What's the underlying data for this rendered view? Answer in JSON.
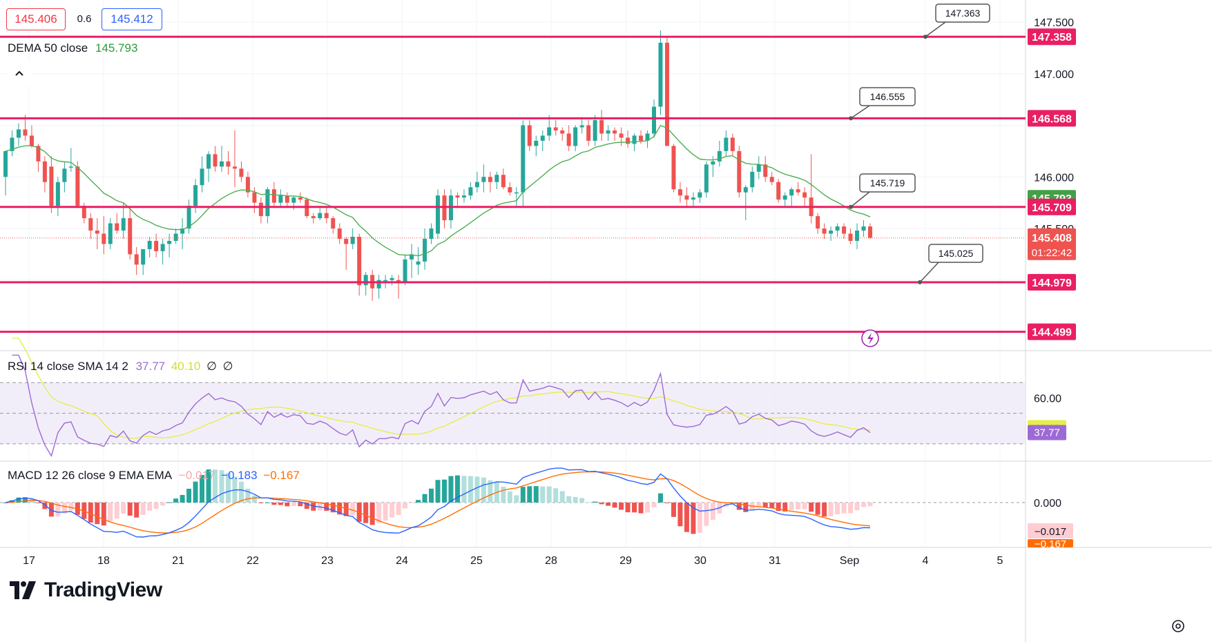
{
  "header": {
    "bid": "145.406",
    "spread": "0.6",
    "ask": "145.412",
    "indicator_name": "DEMA 50 close",
    "indicator_value": "145.793"
  },
  "colors": {
    "up": "#26a69a",
    "down": "#ef5350",
    "level_line": "#e91e63",
    "dema": "#4caf50",
    "rsi": "#9c6ad6",
    "rsi_sma": "#e6ee4b",
    "macd": "#2962ff",
    "signal": "#ff6d00"
  },
  "price_axis": {
    "ticks": [
      "147.500",
      "147.000",
      "146.000",
      "145.500"
    ],
    "labels": {
      "level1": "147.358",
      "level2": "146.568",
      "dema": "145.793",
      "level3": "145.709",
      "last": "145.408",
      "countdown": "01:22:42",
      "level4": "144.979",
      "level5": "144.499"
    }
  },
  "callouts": [
    "147.363",
    "146.555",
    "145.719",
    "145.025"
  ],
  "rsi": {
    "legend_name": "RSI 14 close SMA 14 2",
    "value": "37.77",
    "sma_value": "40.10",
    "extra1": "∅",
    "extra2": "∅",
    "axis_tick": "60.00"
  },
  "macd": {
    "legend_name": "MACD 12 26 close 9 EMA EMA",
    "hist": "−0.017",
    "macd": "−0.183",
    "signal": "−0.167",
    "axis_tick": "0.000",
    "axis_hist": "−0.017",
    "axis_signal": "−0.167"
  },
  "time_axis": [
    "17",
    "18",
    "21",
    "22",
    "23",
    "24",
    "25",
    "28",
    "29",
    "30",
    "31",
    "Sep",
    "4",
    "5"
  ],
  "branding": {
    "name": "TradingView"
  },
  "chart_data": {
    "type": "candlestick",
    "symbol_title": "",
    "horizontal_levels": [
      147.358,
      146.568,
      145.709,
      144.979,
      144.499
    ],
    "last_price": 145.408,
    "dema_50": 145.793,
    "ylim": [
      144.4,
      147.6
    ],
    "x_days": [
      "17",
      "18",
      "21",
      "22",
      "23",
      "24",
      "25",
      "28",
      "29",
      "30",
      "31",
      "Sep"
    ],
    "candles": [
      [
        146.0,
        146.25,
        145.82,
        146.25
      ],
      [
        146.25,
        146.45,
        146.2,
        146.38
      ],
      [
        146.38,
        146.52,
        146.3,
        146.46
      ],
      [
        146.46,
        146.6,
        146.35,
        146.4
      ],
      [
        146.4,
        146.5,
        146.28,
        146.3
      ],
      [
        146.3,
        146.32,
        146.05,
        146.15
      ],
      [
        146.15,
        146.2,
        145.85,
        145.95
      ],
      [
        146.1,
        146.2,
        145.65,
        145.72
      ],
      [
        145.72,
        146.0,
        145.62,
        145.95
      ],
      [
        145.95,
        146.15,
        145.85,
        146.08
      ],
      [
        146.1,
        146.28,
        146.05,
        146.1
      ],
      [
        146.1,
        146.15,
        145.7,
        145.72
      ],
      [
        145.72,
        145.75,
        145.55,
        145.6
      ],
      [
        145.6,
        145.65,
        145.4,
        145.48
      ],
      [
        145.48,
        145.6,
        145.3,
        145.45
      ],
      [
        145.45,
        145.62,
        145.25,
        145.35
      ],
      [
        145.35,
        145.6,
        145.3,
        145.55
      ],
      [
        145.55,
        145.65,
        145.45,
        145.48
      ],
      [
        145.48,
        145.75,
        145.4,
        145.6
      ],
      [
        145.6,
        145.7,
        145.2,
        145.25
      ],
      [
        145.25,
        145.32,
        145.05,
        145.15
      ],
      [
        145.15,
        145.3,
        145.05,
        145.3
      ],
      [
        145.3,
        145.42,
        145.22,
        145.38
      ],
      [
        145.38,
        145.45,
        145.22,
        145.28
      ],
      [
        145.28,
        145.4,
        145.15,
        145.35
      ],
      [
        145.35,
        145.45,
        145.22,
        145.38
      ],
      [
        145.38,
        145.5,
        145.35,
        145.45
      ],
      [
        145.45,
        145.6,
        145.3,
        145.5
      ],
      [
        145.5,
        145.78,
        145.45,
        145.72
      ],
      [
        145.72,
        145.98,
        145.65,
        145.92
      ],
      [
        145.92,
        146.2,
        145.85,
        146.08
      ],
      [
        146.08,
        146.25,
        145.95,
        146.22
      ],
      [
        146.22,
        146.3,
        146.05,
        146.1
      ],
      [
        146.1,
        146.3,
        146.05,
        146.15
      ],
      [
        146.15,
        146.25,
        146.02,
        146.1
      ],
      [
        146.1,
        146.45,
        145.9,
        146.08
      ],
      [
        146.08,
        146.15,
        145.95,
        146.0
      ],
      [
        146.0,
        146.05,
        145.8,
        145.85
      ],
      [
        145.85,
        145.9,
        145.65,
        145.75
      ],
      [
        145.75,
        145.8,
        145.55,
        145.62
      ],
      [
        145.62,
        145.9,
        145.55,
        145.88
      ],
      [
        145.88,
        145.95,
        145.72,
        145.75
      ],
      [
        145.75,
        145.88,
        145.7,
        145.82
      ],
      [
        145.82,
        145.85,
        145.7,
        145.75
      ],
      [
        145.75,
        145.82,
        145.68,
        145.8
      ],
      [
        145.8,
        145.85,
        145.75,
        145.78
      ],
      [
        145.78,
        145.8,
        145.6,
        145.62
      ],
      [
        145.62,
        145.65,
        145.55,
        145.6
      ],
      [
        145.6,
        145.72,
        145.58,
        145.65
      ],
      [
        145.65,
        145.7,
        145.55,
        145.6
      ],
      [
        145.6,
        145.62,
        145.45,
        145.5
      ],
      [
        145.5,
        145.55,
        145.35,
        145.4
      ],
      [
        145.4,
        145.42,
        145.1,
        145.35
      ],
      [
        145.35,
        145.5,
        145.3,
        145.42
      ],
      [
        145.42,
        145.45,
        144.85,
        144.95
      ],
      [
        144.95,
        145.08,
        144.85,
        145.05
      ],
      [
        145.05,
        145.1,
        144.8,
        144.92
      ],
      [
        144.92,
        145.05,
        144.82,
        145.0
      ],
      [
        145.0,
        145.05,
        144.92,
        145.0
      ],
      [
        145.0,
        145.05,
        144.95,
        145.02
      ],
      [
        145.0,
        145.05,
        144.82,
        144.98
      ],
      [
        144.98,
        145.25,
        144.95,
        145.2
      ],
      [
        145.2,
        145.35,
        145.02,
        145.25
      ],
      [
        145.15,
        145.32,
        145.05,
        145.18
      ],
      [
        145.18,
        145.5,
        145.1,
        145.4
      ],
      [
        145.4,
        145.55,
        145.35,
        145.5
      ],
      [
        145.45,
        145.88,
        145.4,
        145.82
      ],
      [
        145.82,
        145.88,
        145.5,
        145.58
      ],
      [
        145.58,
        145.88,
        145.5,
        145.82
      ],
      [
        145.82,
        145.85,
        145.7,
        145.8
      ],
      [
        145.8,
        145.88,
        145.75,
        145.82
      ],
      [
        145.82,
        145.95,
        145.78,
        145.9
      ],
      [
        145.9,
        146.05,
        145.85,
        145.95
      ],
      [
        145.95,
        146.12,
        145.85,
        146.0
      ],
      [
        146.0,
        146.05,
        145.85,
        145.95
      ],
      [
        145.95,
        146.05,
        145.88,
        146.02
      ],
      [
        146.02,
        146.08,
        145.88,
        145.9
      ],
      [
        145.9,
        145.95,
        145.82,
        145.85
      ],
      [
        145.85,
        145.9,
        145.72,
        145.85
      ],
      [
        145.85,
        146.55,
        145.72,
        146.5
      ],
      [
        146.5,
        146.55,
        146.25,
        146.3
      ],
      [
        146.3,
        146.4,
        146.2,
        146.35
      ],
      [
        146.35,
        146.45,
        146.25,
        146.4
      ],
      [
        146.4,
        146.6,
        146.35,
        146.48
      ],
      [
        146.48,
        146.55,
        146.4,
        146.45
      ],
      [
        146.45,
        146.48,
        146.35,
        146.42
      ],
      [
        146.42,
        146.5,
        146.25,
        146.3
      ],
      [
        146.3,
        146.5,
        146.25,
        146.48
      ],
      [
        146.48,
        146.58,
        146.42,
        146.5
      ],
      [
        146.5,
        146.55,
        146.3,
        146.35
      ],
      [
        146.35,
        146.6,
        146.3,
        146.55
      ],
      [
        146.55,
        146.65,
        146.35,
        146.42
      ],
      [
        146.42,
        146.5,
        146.35,
        146.45
      ],
      [
        146.45,
        146.48,
        146.35,
        146.42
      ],
      [
        146.42,
        146.48,
        146.3,
        146.38
      ],
      [
        146.38,
        146.45,
        146.28,
        146.32
      ],
      [
        146.32,
        146.42,
        146.25,
        146.4
      ],
      [
        146.4,
        146.45,
        146.32,
        146.35
      ],
      [
        146.35,
        146.45,
        146.28,
        146.42
      ],
      [
        146.42,
        146.75,
        146.38,
        146.68
      ],
      [
        146.68,
        147.42,
        146.6,
        147.3
      ],
      [
        147.3,
        147.35,
        146.3,
        146.3
      ],
      [
        146.3,
        146.32,
        145.85,
        145.88
      ],
      [
        145.88,
        145.95,
        145.75,
        145.82
      ],
      [
        145.82,
        145.9,
        145.7,
        145.78
      ],
      [
        145.78,
        145.85,
        145.72,
        145.8
      ],
      [
        145.8,
        145.88,
        145.75,
        145.85
      ],
      [
        145.85,
        146.15,
        145.8,
        146.12
      ],
      [
        146.12,
        146.2,
        146.0,
        146.15
      ],
      [
        146.15,
        146.35,
        146.1,
        146.25
      ],
      [
        146.25,
        146.45,
        146.2,
        146.38
      ],
      [
        146.38,
        146.42,
        146.2,
        146.25
      ],
      [
        146.25,
        146.3,
        145.8,
        145.85
      ],
      [
        145.85,
        145.92,
        145.58,
        145.9
      ],
      [
        145.9,
        146.1,
        145.85,
        146.05
      ],
      [
        146.05,
        146.2,
        145.98,
        146.12
      ],
      [
        146.12,
        146.2,
        145.95,
        146.0
      ],
      [
        146.0,
        146.05,
        145.92,
        145.95
      ],
      [
        145.95,
        145.98,
        145.75,
        145.78
      ],
      [
        145.78,
        145.85,
        145.72,
        145.82
      ],
      [
        145.82,
        145.9,
        145.7,
        145.88
      ],
      [
        145.88,
        145.95,
        145.82,
        145.85
      ],
      [
        145.85,
        145.9,
        145.72,
        145.8
      ],
      [
        145.8,
        146.22,
        145.55,
        145.62
      ],
      [
        145.62,
        145.65,
        145.45,
        145.5
      ],
      [
        145.5,
        145.55,
        145.4,
        145.45
      ],
      [
        145.45,
        145.52,
        145.38,
        145.48
      ],
      [
        145.48,
        145.55,
        145.42,
        145.52
      ],
      [
        145.52,
        145.55,
        145.4,
        145.45
      ],
      [
        145.45,
        145.5,
        145.35,
        145.38
      ],
      [
        145.38,
        145.55,
        145.3,
        145.48
      ],
      [
        145.48,
        145.58,
        145.42,
        145.52
      ],
      [
        145.52,
        145.55,
        145.4,
        145.41
      ]
    ],
    "rsi": {
      "ylim": [
        20,
        90
      ],
      "upper": 70,
      "middle": 50,
      "lower": 30,
      "last": 37.77,
      "sma_last": 40.1
    },
    "macd": {
      "hist_last": -0.017,
      "macd_last": -0.183,
      "signal_last": -0.167
    }
  }
}
